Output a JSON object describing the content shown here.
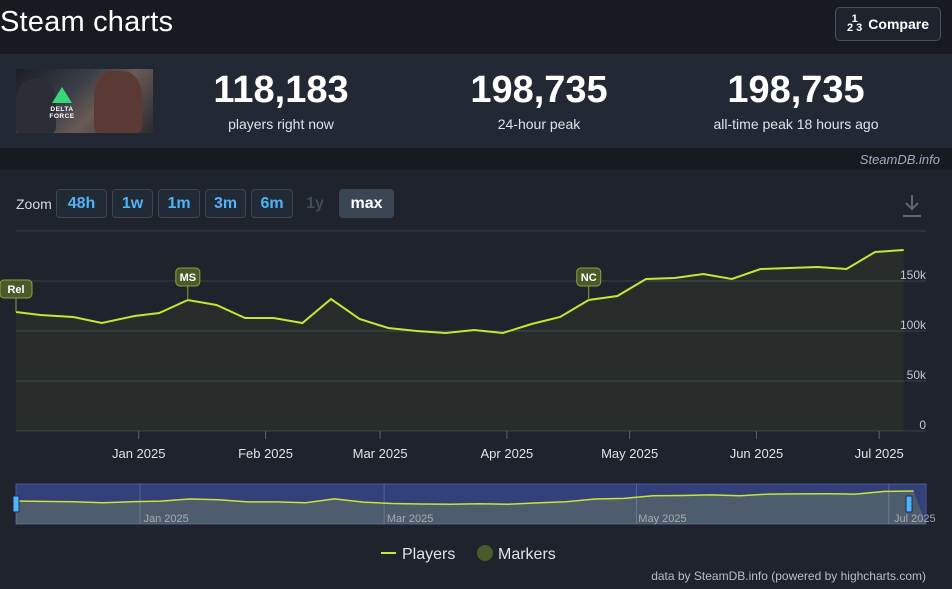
{
  "header": {
    "title": "Steam charts",
    "compare_label": "Compare",
    "compare_icon": "fraction-icon",
    "compare_icon_top": "1",
    "compare_icon_bottom": "2 3"
  },
  "game": {
    "logo_text": "DELTA FORCE"
  },
  "stats": [
    {
      "value": "118,183",
      "label": "players right now"
    },
    {
      "value": "198,735",
      "label": "24-hour peak"
    },
    {
      "value": "198,735",
      "label": "all-time peak 18 hours ago"
    }
  ],
  "credit": "SteamDB.info",
  "zoom": {
    "label": "Zoom",
    "options": [
      {
        "label": "48h",
        "state": "enabled"
      },
      {
        "label": "1w",
        "state": "enabled"
      },
      {
        "label": "1m",
        "state": "enabled"
      },
      {
        "label": "3m",
        "state": "enabled"
      },
      {
        "label": "6m",
        "state": "enabled"
      },
      {
        "label": "1y",
        "state": "disabled"
      },
      {
        "label": "max",
        "state": "active"
      }
    ]
  },
  "colors": {
    "line": "#c6e536",
    "marker_fill": "#4a5a2a",
    "marker_stroke": "#8aa33a",
    "grid": "#3a414c",
    "navigator_bg": "#34407a",
    "accent": "#4fb3f6"
  },
  "chart_data": {
    "type": "area",
    "x_axis": {
      "type": "date",
      "range": [
        "2024-12-02",
        "2025-07-10"
      ],
      "tick_labels": [
        "Jan 2025",
        "Feb 2025",
        "Mar 2025",
        "Apr 2025",
        "May 2025",
        "Jun 2025",
        "Jul 2025"
      ],
      "tick_dates": [
        "2025-01-01",
        "2025-02-01",
        "2025-03-01",
        "2025-04-01",
        "2025-05-01",
        "2025-06-01",
        "2025-07-01"
      ]
    },
    "y_axis": {
      "range": [
        0,
        200000
      ],
      "ticks": [
        0,
        50000,
        100000,
        150000
      ],
      "tick_labels": [
        "0",
        "50k",
        "100k",
        "150k"
      ],
      "position": "right",
      "grid": true
    },
    "series": [
      {
        "name": "Players",
        "points": [
          [
            "2024-12-02",
            119000
          ],
          [
            "2024-12-08",
            116000
          ],
          [
            "2024-12-16",
            114000
          ],
          [
            "2024-12-23",
            108000
          ],
          [
            "2024-12-31",
            115000
          ],
          [
            "2025-01-06",
            118000
          ],
          [
            "2025-01-13",
            131000
          ],
          [
            "2025-01-20",
            126000
          ],
          [
            "2025-01-27",
            113000
          ],
          [
            "2025-02-03",
            113000
          ],
          [
            "2025-02-10",
            108000
          ],
          [
            "2025-02-17",
            132000
          ],
          [
            "2025-02-24",
            112000
          ],
          [
            "2025-03-03",
            103000
          ],
          [
            "2025-03-10",
            100000
          ],
          [
            "2025-03-17",
            98000
          ],
          [
            "2025-03-24",
            101000
          ],
          [
            "2025-03-31",
            98000
          ],
          [
            "2025-04-07",
            107000
          ],
          [
            "2025-04-14",
            114000
          ],
          [
            "2025-04-21",
            131000
          ],
          [
            "2025-04-28",
            135000
          ],
          [
            "2025-05-05",
            152000
          ],
          [
            "2025-05-12",
            153000
          ],
          [
            "2025-05-19",
            157000
          ],
          [
            "2025-05-26",
            152000
          ],
          [
            "2025-06-02",
            162000
          ],
          [
            "2025-06-09",
            163000
          ],
          [
            "2025-06-16",
            164000
          ],
          [
            "2025-06-23",
            162000
          ],
          [
            "2025-06-30",
            179000
          ],
          [
            "2025-07-07",
            181000
          ]
        ]
      }
    ],
    "markers": [
      {
        "label": "Rel",
        "date": "2024-12-02"
      },
      {
        "label": "MS",
        "date": "2025-01-13"
      },
      {
        "label": "NC",
        "date": "2025-04-21"
      }
    ],
    "navigator": {
      "tick_labels": [
        "Jan 2025",
        "Mar 2025",
        "May 2025",
        "Jul 2025"
      ],
      "tick_dates": [
        "2025-01-01",
        "2025-03-01",
        "2025-05-01",
        "2025-07-01"
      ]
    },
    "legend": {
      "position": "bottom",
      "items": [
        "Players",
        "Markers"
      ]
    }
  },
  "footer": {
    "credit": "data by SteamDB.info (powered by highcharts.com)"
  }
}
